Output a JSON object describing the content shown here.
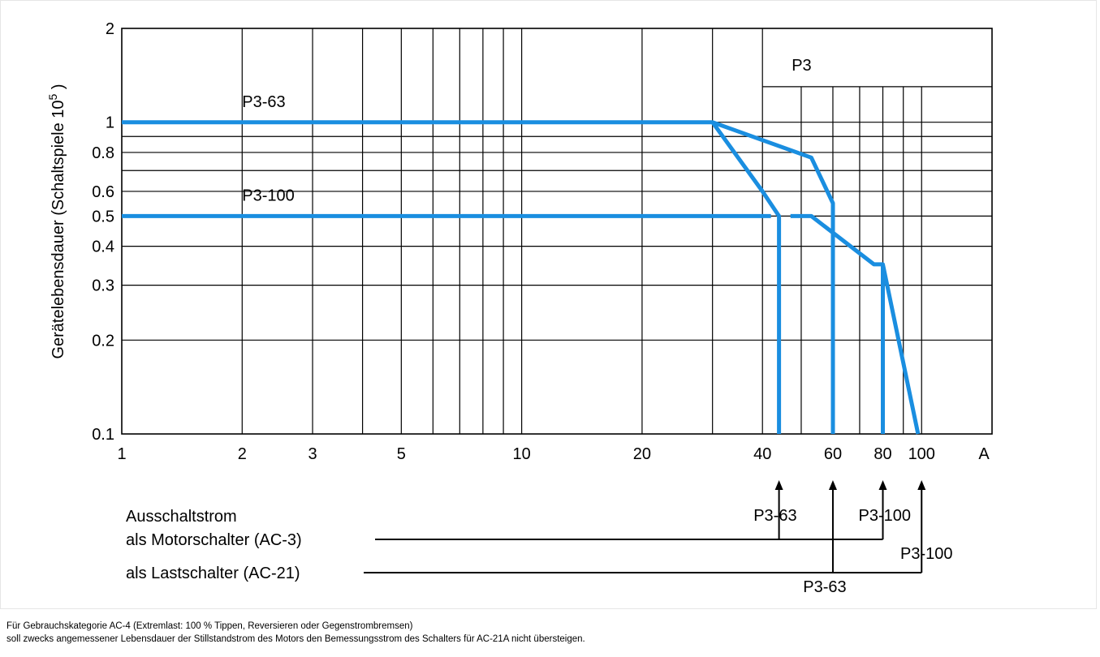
{
  "chart_data": {
    "type": "line",
    "ylabel": "Gerätelebensdauer (Schaltspiele 10",
    "ylabel_sup": "5",
    "ylabel_end": " )",
    "x_scale": "log",
    "y_scale": "log",
    "xlim": [
      1,
      150
    ],
    "ylim": [
      0.1,
      2
    ],
    "x_ticks": [
      {
        "v": 1,
        "label": "1"
      },
      {
        "v": 2,
        "label": "2"
      },
      {
        "v": 3,
        "label": "3"
      },
      {
        "v": 5,
        "label": "5"
      },
      {
        "v": 10,
        "label": "10"
      },
      {
        "v": 20,
        "label": "20"
      },
      {
        "v": 40,
        "label": "40"
      },
      {
        "v": 60,
        "label": "60"
      },
      {
        "v": 80,
        "label": "80"
      },
      {
        "v": 100,
        "label": "100"
      }
    ],
    "x_unit_label": "A",
    "y_ticks": [
      {
        "v": 2,
        "label": "2"
      },
      {
        "v": 1,
        "label": "1"
      },
      {
        "v": 0.8,
        "label": "0.8"
      },
      {
        "v": 0.6,
        "label": "0.6"
      },
      {
        "v": 0.5,
        "label": "0.5"
      },
      {
        "v": 0.4,
        "label": "0.4"
      },
      {
        "v": 0.3,
        "label": "0.3"
      },
      {
        "v": 0.2,
        "label": "0.2"
      },
      {
        "v": 0.1,
        "label": "0.1"
      }
    ],
    "x_grid": [
      2,
      3,
      4,
      5,
      6,
      7,
      8,
      9,
      10,
      20,
      30,
      40
    ],
    "x_grid_inset": [
      50,
      60,
      70,
      80,
      90,
      100
    ],
    "y_grid": [
      1,
      0.9,
      0.8,
      0.7,
      0.6,
      0.5,
      0.4,
      0.3,
      0.2
    ],
    "grid": true,
    "inset_box": {
      "label": "P3",
      "x_from": 40,
      "y_from": 1.3
    },
    "series": [
      {
        "name": "P3-63",
        "label_at": [
          2,
          1.12
        ],
        "points": [
          [
            1,
            1
          ],
          [
            30,
            1
          ],
          [
            53,
            0.77
          ],
          [
            60,
            0.55
          ],
          [
            60,
            0.1
          ]
        ]
      },
      {
        "name": "P3-63 AC-3",
        "points": [
          [
            30,
            1
          ],
          [
            40,
            0.6
          ],
          [
            44,
            0.5
          ],
          [
            44,
            0.1
          ]
        ]
      },
      {
        "name": "P3-100",
        "label_at": [
          2,
          0.56
        ],
        "points": [
          [
            1,
            0.5
          ],
          [
            42,
            0.5
          ]
        ]
      },
      {
        "name": "P3-100 AC-3",
        "points": [
          [
            47,
            0.5
          ],
          [
            53,
            0.5
          ],
          [
            76,
            0.35
          ],
          [
            80,
            0.35
          ],
          [
            80,
            0.1
          ]
        ]
      },
      {
        "name": "P3-100 AC-21",
        "points": [
          [
            80,
            0.35
          ],
          [
            98,
            0.1
          ]
        ]
      }
    ],
    "annotations": {
      "heading": "Ausschaltstrom",
      "row_ac3": {
        "label": "als Motorschalter (AC-3)",
        "arrows": [
          {
            "x": 44,
            "label": "P3-63",
            "label_pos": "left-above"
          },
          {
            "x": 80,
            "label": "P3-100",
            "label_pos": "right-above"
          }
        ]
      },
      "row_ac21": {
        "label": "als Lastschalter (AC-21)",
        "arrows": [
          {
            "x": 60,
            "label": "P3-63",
            "label_pos": "below"
          },
          {
            "x": 100,
            "label": "P3-100",
            "label_pos": "right-below"
          }
        ]
      }
    }
  },
  "footnote": {
    "line1": "Für Gebrauchskategorie AC-4 (Extremlast: 100 % Tippen, Reversieren oder Gegenstrombremsen)",
    "line2": "soll zwecks angemessener Lebensdauer der Stillstandstrom des Motors den Bemessungsstrom des Schalters für AC-21A nicht übersteigen."
  },
  "colors": {
    "curve": "#1a8ee0",
    "grid": "#000000",
    "text": "#000000"
  }
}
